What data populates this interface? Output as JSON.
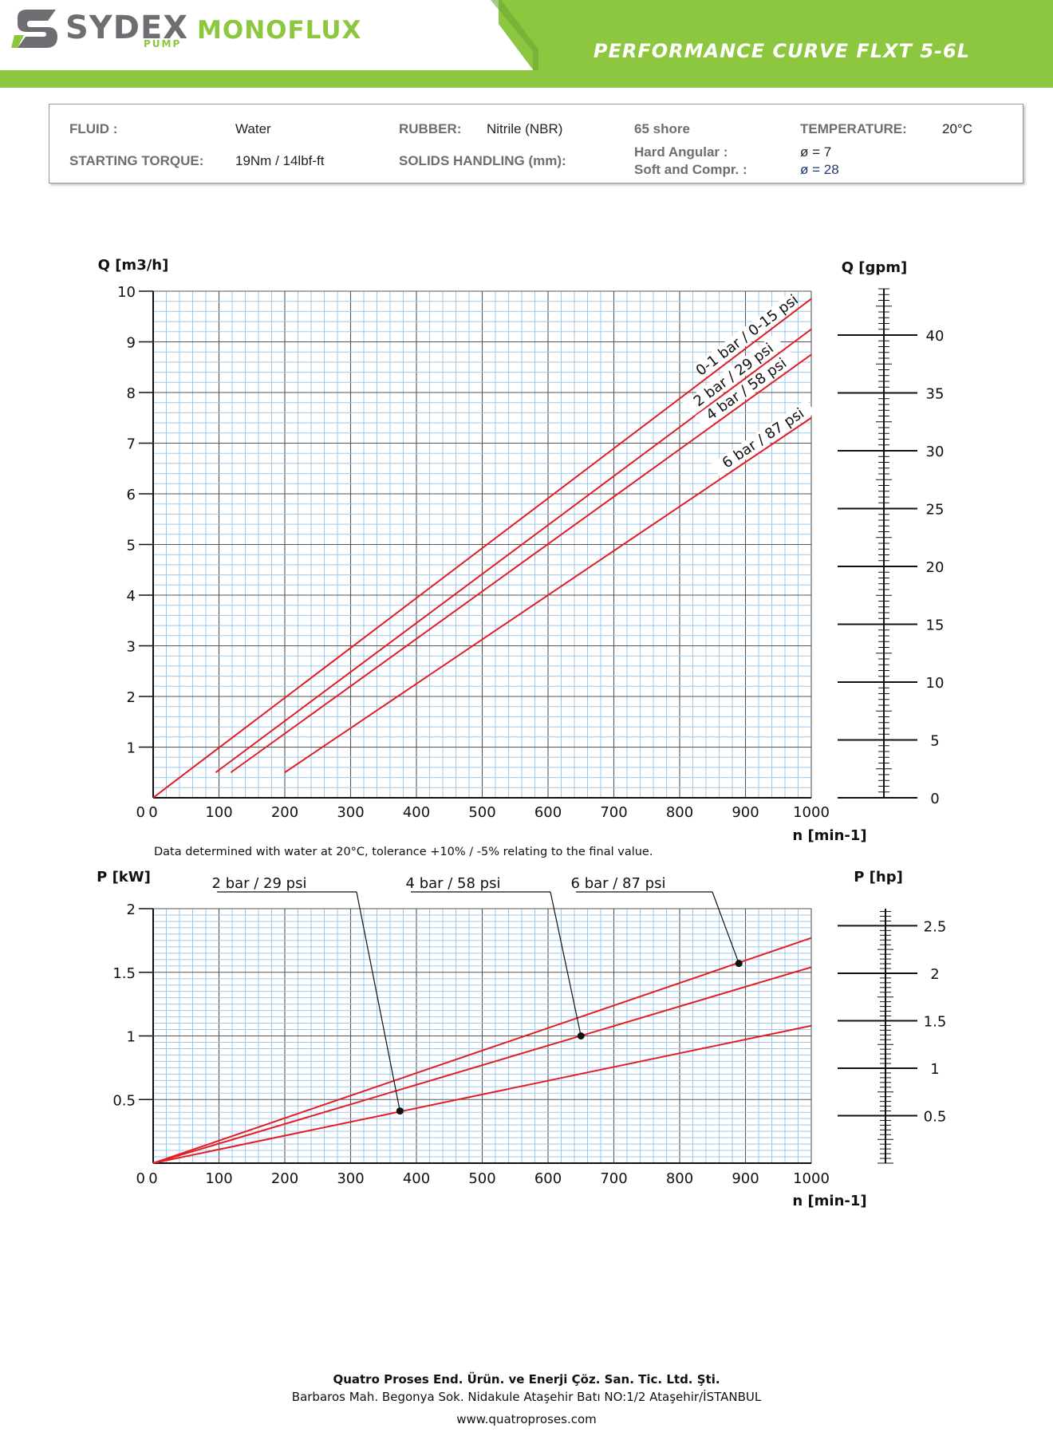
{
  "header": {
    "brand": "SYDEX",
    "brand_sub": "PUMP",
    "product": "MONOFLUX",
    "title": "PERFORMANCE CURVE FLXT  5-6L",
    "colors": {
      "green": "#8dc63f",
      "gray": "#6d6e71"
    }
  },
  "spec": {
    "fluid_label": "FLUID :",
    "fluid_value": "Water",
    "rubber_label": "RUBBER:",
    "rubber_value": "Nitrile (NBR)",
    "shore": "65 shore",
    "temperature_label": "TEMPERATURE:",
    "temperature_value": "20°C",
    "torque_label": "STARTING TORQUE:",
    "torque_value": "19Nm / 14lbf-ft",
    "solids_label": "SOLIDS HANDLING (mm):",
    "hard_label": "Hard Angular :",
    "hard_value": "ø = 7",
    "soft_label": "Soft and Compr. :",
    "soft_value": "ø = 28"
  },
  "note": "Data determined with water at 20°C, tolerance +10% / -5% relating to the final value.",
  "chart_data": [
    {
      "type": "line",
      "ylabel": "Q [m3/h]",
      "y2label": "Q [gpm]",
      "xlabel": "n [min-1]",
      "xlim": [
        0,
        1000
      ],
      "ylim": [
        0,
        10
      ],
      "y2lim": [
        0,
        44
      ],
      "xticks": [
        0,
        100,
        200,
        300,
        400,
        500,
        600,
        700,
        800,
        900,
        1000
      ],
      "yticks": [
        1,
        2,
        3,
        4,
        5,
        6,
        7,
        8,
        9,
        10
      ],
      "y2ticks": [
        0,
        5,
        10,
        15,
        20,
        25,
        30,
        35,
        40
      ],
      "grid": true,
      "line_color": "#e31e24",
      "series": [
        {
          "name": "0-1 bar / 0-15 psi",
          "x": [
            0,
            20,
            1000
          ],
          "y": [
            0,
            0.2,
            9.85
          ]
        },
        {
          "name": "2 bar / 29 psi",
          "x": [
            95,
            1000
          ],
          "y": [
            0.5,
            9.25
          ]
        },
        {
          "name": "4 bar / 58 psi",
          "x": [
            118,
            1000
          ],
          "y": [
            0.5,
            8.75
          ]
        },
        {
          "name": "6 bar / 87 psi",
          "x": [
            200,
            1000
          ],
          "y": [
            0.5,
            7.5
          ]
        }
      ]
    },
    {
      "type": "line",
      "ylabel": "P [kW]",
      "y2label": "P [hp]",
      "xlabel": "n [min-1]",
      "xlim": [
        0,
        1000
      ],
      "ylim": [
        0,
        2
      ],
      "y2lim": [
        0,
        2.68
      ],
      "xticks": [
        0,
        100,
        200,
        300,
        400,
        500,
        600,
        700,
        800,
        900,
        1000
      ],
      "yticks": [
        0.5,
        1,
        1.5,
        2
      ],
      "y2ticks": [
        0.5,
        1,
        1.5,
        2,
        2.5
      ],
      "grid": true,
      "line_color": "#e31e24",
      "series": [
        {
          "name": "2 bar / 29 psi",
          "x": [
            0,
            1000
          ],
          "y": [
            0,
            1.08
          ]
        },
        {
          "name": "4 bar / 58 psi",
          "x": [
            0,
            1000
          ],
          "y": [
            0,
            1.54
          ]
        },
        {
          "name": "6 bar / 87 psi",
          "x": [
            0,
            1000
          ],
          "y": [
            0,
            1.77
          ]
        }
      ],
      "callouts": [
        {
          "label": "2 bar / 29 psi",
          "x": 375,
          "y": 0.41
        },
        {
          "label": "4 bar / 58 psi",
          "x": 650,
          "y": 1.0
        },
        {
          "label": "6 bar / 87 psi",
          "x": 890,
          "y": 1.57
        }
      ]
    }
  ],
  "footer": {
    "company": "Quatro Proses End. Ürün. ve Enerji Çöz. San. Tic. Ltd. Şti.",
    "address": "Barbaros Mah. Begonya Sok. Nidakule Ataşehir Batı NO:1/2 Ataşehir/İSTANBUL",
    "url": "www.quatroproses.com"
  }
}
